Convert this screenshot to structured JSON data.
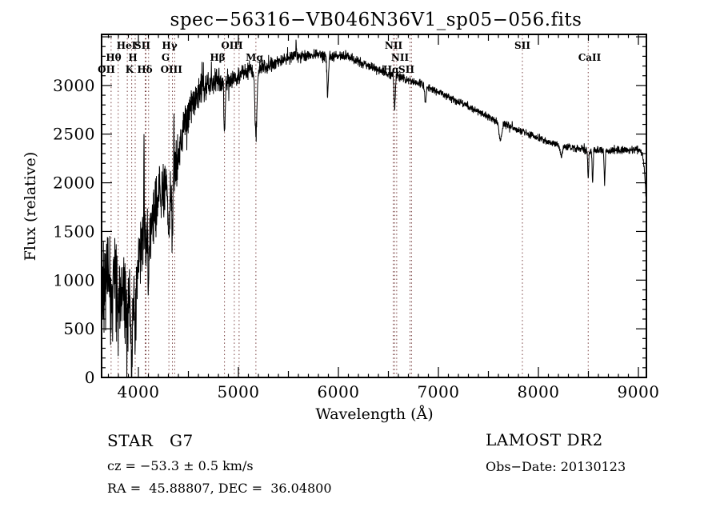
{
  "title": "spec−56316−VB046N36V1_sp05−056.fits",
  "annotations": {
    "class_label": "STAR   G7",
    "survey": "LAMOST DR2",
    "cz": "cz = −53.3 ± 0.5 km/s",
    "obs_date": "Obs−Date: 20130123",
    "ra_dec": "RA =  45.88807, DEC =  36.04800"
  },
  "chart_data": {
    "type": "line",
    "title": "spec−56316−VB046N36V1_sp05−056.fits",
    "xlabel": "Wavelength (Å)",
    "ylabel": "Flux (relative)",
    "xlim": [
      3632,
      9080
    ],
    "ylim": [
      0,
      3525
    ],
    "x_major_ticks": [
      4000,
      5000,
      6000,
      7000,
      8000,
      9000
    ],
    "x_medium_step": 500,
    "x_minor_step": 100,
    "y_major_ticks": [
      0,
      500,
      1000,
      1500,
      2000,
      2500,
      3000
    ],
    "y_minor_step": 100,
    "grid": false,
    "legend": "none",
    "line_color": "#000000",
    "marker_line_color": "#7a4242",
    "line_markers": [
      {
        "label": "OII",
        "wavelengths": [
          3727
        ],
        "row": 3,
        "label_at": 3680
      },
      {
        "label": "Hθ",
        "wavelengths": [
          3798
        ],
        "row": 2,
        "label_at": 3752
      },
      {
        "label": "HeI",
        "wavelengths": [
          3889
        ],
        "row": 1,
        "label_at": 3880
      },
      {
        "label": "K",
        "wavelengths": [
          3933
        ],
        "row": 3,
        "label_at": 3912
      },
      {
        "label": "H",
        "wavelengths": [
          3968
        ],
        "row": 2,
        "label_at": 3944
      },
      {
        "label": "SII",
        "wavelengths": [
          4068,
          4076
        ],
        "row": 1,
        "label_at": 4040
      },
      {
        "label": "Hδ",
        "wavelengths": [
          4102
        ],
        "row": 3,
        "label_at": 4064
      },
      {
        "label": "G",
        "wavelengths": [
          4305
        ],
        "row": 2,
        "label_at": 4272
      },
      {
        "label": "Hγ",
        "wavelengths": [
          4340
        ],
        "row": 1,
        "label_at": 4312
      },
      {
        "label": "OIII",
        "wavelengths": [
          4363
        ],
        "row": 3,
        "label_at": 4330
      },
      {
        "label": "Hβ",
        "wavelengths": [
          4861
        ],
        "row": 2,
        "label_at": 4792
      },
      {
        "label": "OIII",
        "wavelengths": [
          4959,
          5007
        ],
        "row": 1,
        "label_at": 4936
      },
      {
        "label": "Mg",
        "wavelengths": [
          5175
        ],
        "row": 2,
        "label_at": 5160
      },
      {
        "label": "NII",
        "wavelengths": [
          6548
        ],
        "row": 1,
        "label_at": 6552
      },
      {
        "label": "Hα",
        "wavelengths": [
          6563
        ],
        "row": 3,
        "label_at": 6528
      },
      {
        "label": "NII",
        "wavelengths": [
          6583
        ],
        "row": 2,
        "label_at": 6616
      },
      {
        "label": "SII",
        "wavelengths": [
          6716,
          6731
        ],
        "row": 3,
        "label_at": 6680
      },
      {
        "label": "SII",
        "wavelengths": [
          7840
        ],
        "row": 1,
        "label_at": 7840
      },
      {
        "label": "CaII",
        "wavelengths": [
          8498
        ],
        "row": 2,
        "label_at": 8512
      }
    ],
    "spectrum": {
      "comment": "flux envelope read from plot; noisy 1D stellar spectrum, noise amplitude decreasing to the red",
      "sample_step": 2,
      "seed": 42,
      "envelope": [
        [
          3632,
          1000
        ],
        [
          3660,
          1050
        ],
        [
          3700,
          1000
        ],
        [
          3730,
          950
        ],
        [
          3760,
          1000
        ],
        [
          3800,
          950
        ],
        [
          3840,
          850
        ],
        [
          3880,
          800
        ],
        [
          3920,
          850
        ],
        [
          3960,
          800
        ],
        [
          4000,
          1200
        ],
        [
          4040,
          1400
        ],
        [
          4080,
          1500
        ],
        [
          4130,
          1550
        ],
        [
          4170,
          1700
        ],
        [
          4210,
          1850
        ],
        [
          4260,
          1950
        ],
        [
          4310,
          2000
        ],
        [
          4360,
          2100
        ],
        [
          4410,
          2350
        ],
        [
          4460,
          2600
        ],
        [
          4510,
          2750
        ],
        [
          4560,
          2850
        ],
        [
          4610,
          2950
        ],
        [
          4700,
          3000
        ],
        [
          4800,
          3050
        ],
        [
          4900,
          3050
        ],
        [
          5000,
          3100
        ],
        [
          5100,
          3150
        ],
        [
          5200,
          3180
        ],
        [
          5300,
          3200
        ],
        [
          5400,
          3250
        ],
        [
          5500,
          3280
        ],
        [
          5600,
          3300
        ],
        [
          5700,
          3300
        ],
        [
          5800,
          3320
        ],
        [
          5900,
          3300
        ],
        [
          6000,
          3300
        ],
        [
          6100,
          3300
        ],
        [
          6200,
          3250
        ],
        [
          6300,
          3200
        ],
        [
          6400,
          3150
        ],
        [
          6500,
          3120
        ],
        [
          6600,
          3100
        ],
        [
          6700,
          3060
        ],
        [
          6800,
          3020
        ],
        [
          6900,
          2980
        ],
        [
          7000,
          2930
        ],
        [
          7100,
          2880
        ],
        [
          7200,
          2830
        ],
        [
          7300,
          2780
        ],
        [
          7400,
          2730
        ],
        [
          7500,
          2680
        ],
        [
          7600,
          2620
        ],
        [
          7700,
          2590
        ],
        [
          7800,
          2540
        ],
        [
          7900,
          2500
        ],
        [
          8000,
          2460
        ],
        [
          8100,
          2420
        ],
        [
          8200,
          2390
        ],
        [
          8300,
          2370
        ],
        [
          8400,
          2350
        ],
        [
          8500,
          2330
        ],
        [
          8600,
          2340
        ],
        [
          8700,
          2330
        ],
        [
          8800,
          2340
        ],
        [
          8900,
          2330
        ],
        [
          9000,
          2340
        ],
        [
          9040,
          2310
        ],
        [
          9060,
          2150
        ],
        [
          9075,
          1900
        ],
        [
          9080,
          1780
        ]
      ],
      "noise_amplitude": [
        [
          3632,
          650
        ],
        [
          3700,
          620
        ],
        [
          3800,
          560
        ],
        [
          3900,
          520
        ],
        [
          4000,
          430
        ],
        [
          4100,
          400
        ],
        [
          4200,
          360
        ],
        [
          4300,
          330
        ],
        [
          4400,
          280
        ],
        [
          4500,
          230
        ],
        [
          4600,
          200
        ],
        [
          4700,
          170
        ],
        [
          4800,
          150
        ],
        [
          4900,
          130
        ],
        [
          5000,
          110
        ],
        [
          5200,
          95
        ],
        [
          5400,
          85
        ],
        [
          5600,
          75
        ],
        [
          5800,
          70
        ],
        [
          6000,
          65
        ],
        [
          6300,
          60
        ],
        [
          6563,
          55
        ],
        [
          7000,
          50
        ],
        [
          7500,
          45
        ],
        [
          8000,
          40
        ],
        [
          8500,
          45
        ],
        [
          9000,
          50
        ],
        [
          9080,
          60
        ]
      ],
      "features": [
        {
          "c": 3727,
          "d": 350,
          "w": 6
        },
        {
          "c": 3798,
          "d": 300,
          "w": 6
        },
        {
          "c": 3835,
          "d": 350,
          "w": 6
        },
        {
          "c": 3889,
          "d": 400,
          "w": 7
        },
        {
          "c": 3933,
          "d": 750,
          "w": 8
        },
        {
          "c": 3968,
          "d": 650,
          "w": 8
        },
        {
          "c": 4102,
          "d": 600,
          "w": 9
        },
        {
          "c": 4305,
          "d": 500,
          "w": 14
        },
        {
          "c": 4340,
          "d": 650,
          "w": 9
        },
        {
          "c": 4861,
          "d": 500,
          "w": 9
        },
        {
          "c": 5175,
          "d": 700,
          "w": 14
        },
        {
          "c": 5893,
          "d": 400,
          "w": 10
        },
        {
          "c": 6563,
          "d": 380,
          "w": 9
        },
        {
          "c": 6870,
          "d": 150,
          "w": 12
        },
        {
          "c": 7620,
          "d": 180,
          "w": 18
        },
        {
          "c": 8230,
          "d": 120,
          "w": 15
        },
        {
          "c": 8498,
          "d": 280,
          "w": 7
        },
        {
          "c": 8542,
          "d": 330,
          "w": 7
        },
        {
          "c": 8662,
          "d": 330,
          "w": 7
        },
        {
          "c": 4056,
          "d": -1100,
          "w": 3
        },
        {
          "c": 4355,
          "d": -800,
          "w": 2.5
        },
        {
          "c": 5577,
          "d": -200,
          "w": 3
        }
      ]
    }
  }
}
